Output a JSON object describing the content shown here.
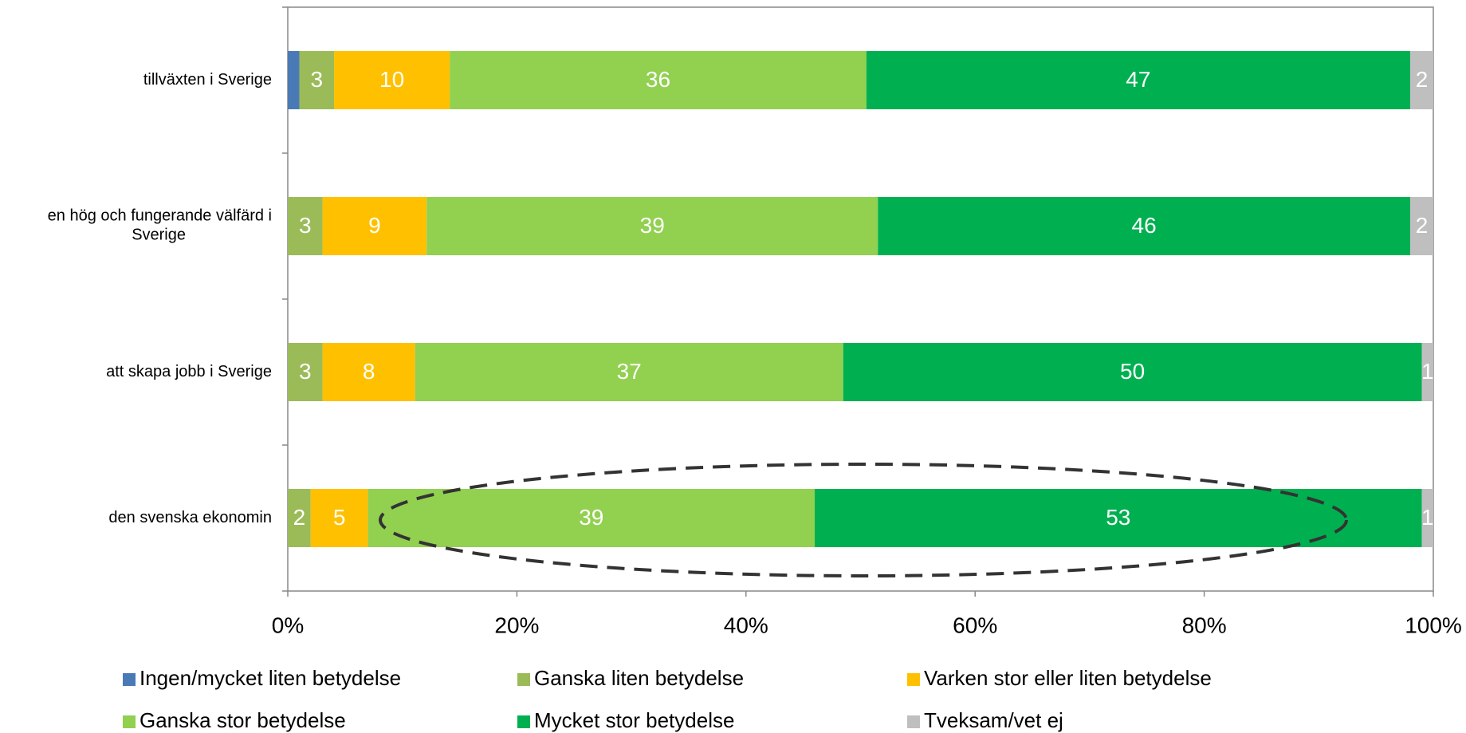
{
  "chart_data": {
    "type": "stacked_percent_bar_horizontal",
    "categories": [
      "tillväxten i Sverige",
      "en hög och fungerande välfärd i Sverige",
      "att skapa jobb i Sverige",
      "den svenska ekonomin"
    ],
    "series": [
      {
        "name": "Ingen/mycket liten betydelse",
        "color": "#4a7ab5",
        "values": [
          1,
          0,
          0,
          0
        ],
        "value_labels": [
          null,
          null,
          null,
          null
        ]
      },
      {
        "name": "Ganska liten betydelse",
        "color": "#9bbb59",
        "values": [
          3,
          3,
          3,
          2
        ]
      },
      {
        "name": "Varken stor eller liten betydelse",
        "color": "#ffc000",
        "values": [
          10,
          9,
          8,
          5
        ]
      },
      {
        "name": "Ganska stor betydelse",
        "color": "#92d050",
        "values": [
          36,
          39,
          37,
          39
        ]
      },
      {
        "name": "Mycket stor betydelse",
        "color": "#00b050",
        "values": [
          47,
          46,
          50,
          53
        ]
      },
      {
        "name": "Tveksam/vet ej",
        "color": "#bfbfbf",
        "values": [
          2,
          2,
          1,
          1
        ]
      }
    ],
    "xlim": [
      0,
      100
    ],
    "xticks": [
      {
        "value": 0,
        "label": "0%"
      },
      {
        "value": 20,
        "label": "20%"
      },
      {
        "value": 40,
        "label": "40%"
      },
      {
        "value": 60,
        "label": "60%"
      },
      {
        "value": 80,
        "label": "80%"
      },
      {
        "value": 100,
        "label": "100%"
      }
    ]
  }
}
